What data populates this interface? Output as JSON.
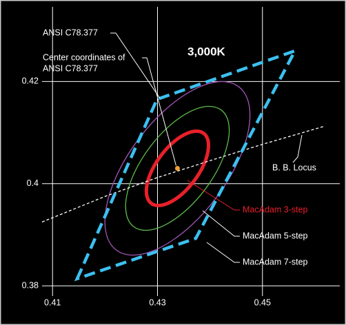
{
  "chart_data": {
    "type": "chromaticity",
    "title": "3,000K",
    "xlim": [
      0.408,
      0.465
    ],
    "ylim": [
      0.378,
      0.435
    ],
    "xticks": [
      0.41,
      0.43,
      0.45
    ],
    "yticks": [
      0.38,
      0.4,
      0.42
    ],
    "grid": true,
    "quadrangle": {
      "name": "ANSI C78.377",
      "color": "#3cc0f0",
      "x": [
        0.4147,
        0.4299,
        0.4562,
        0.4373
      ],
      "y": [
        0.3814,
        0.4165,
        0.426,
        0.3893
      ]
    },
    "center": {
      "name": [
        "Center coordinates of",
        "ANSI C78.377"
      ],
      "color": "#f0a030",
      "x": 0.4338,
      "y": 0.403
    },
    "locus": {
      "name": "B. B. Locus",
      "color": "#ffffff",
      "x": [
        0.408,
        0.42,
        0.43,
        0.44,
        0.45,
        0.4617
      ],
      "y": [
        0.3925,
        0.3975,
        0.4012,
        0.4045,
        0.4077,
        0.4112
      ]
    },
    "ellipse_rotation": 53.22,
    "ellipses": [
      {
        "name": "MacAdam 3-step",
        "color": "#e8202a",
        "label_color": "#e8202a",
        "a": 0.00834,
        "b": 0.00408
      },
      {
        "name": "MacAdam 5-step",
        "color": "#5cbd4a",
        "label_color": "#ffffff",
        "a": 0.0139,
        "b": 0.0068
      },
      {
        "name": "MacAdam 7-step",
        "color": "#a455b8",
        "label_color": "#ffffff",
        "a": 0.01946,
        "b": 0.00952
      }
    ]
  }
}
